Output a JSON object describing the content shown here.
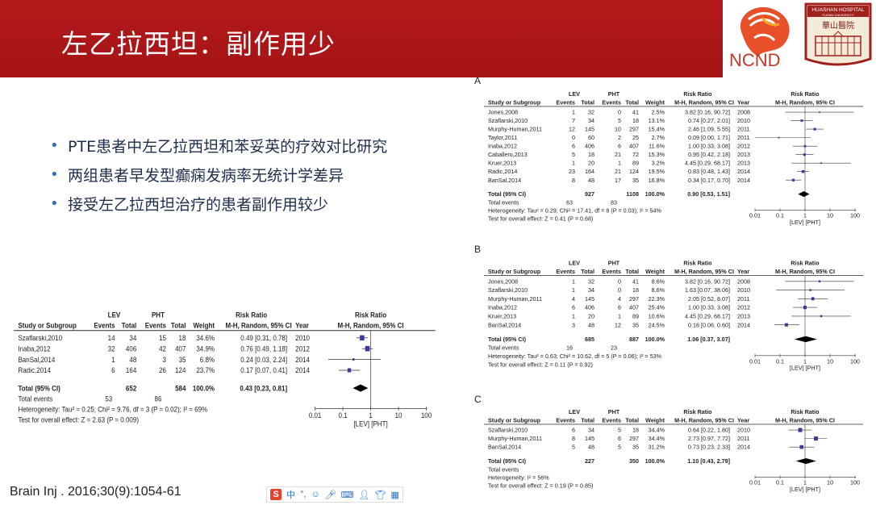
{
  "slide": {
    "title": "左乙拉西坦：副作用少",
    "bullets": [
      "PTE患者中左乙拉西坦和苯妥英的疗效对比研究",
      "两组患者早发型癫痫发病率无统计学差异",
      "接受左乙拉西坦治疗的患者副作用较少"
    ],
    "citation": "Brain Inj . 2016;30(9):1054-61",
    "logos": {
      "ncnd": "NCND",
      "huashan_en": "HUASHAN HOSPITAL",
      "huashan_sub": "FUDAN UNIVERSITY",
      "huashan_cn": "華山醫院"
    },
    "colors": {
      "header_band": "#b3191b",
      "bullet": "#2a6fb8",
      "study_marker": "#3a3a9a"
    }
  },
  "headers": {
    "group1": "LEV",
    "group2": "PHT",
    "risk_ratio": "Risk Ratio",
    "study": "Study or Subgroup",
    "events": "Events",
    "total": "Total",
    "weight": "Weight",
    "method": "M-H, Random, 95% CI",
    "year": "Year",
    "total_row": "Total (95% CI)",
    "total_events": "Total events",
    "axis_ticks": [
      "0.01",
      "0.1",
      "1",
      "10",
      "100"
    ],
    "favours": "[LEV]  [PHT]"
  },
  "ime_toolbar": {
    "logo": "S",
    "mode": "中",
    "punct": "°,",
    "icons": [
      "emoji-icon",
      "mic-icon",
      "keyboard-icon",
      "user-icon",
      "skin-icon",
      "grid-icon"
    ]
  },
  "forest_plots": [
    {
      "id": "main",
      "label": "",
      "rows": [
        {
          "study": "Szaflarski,2010",
          "e1": "14",
          "n1": "34",
          "e2": "15",
          "n2": "18",
          "weight": "34.6%",
          "rr": "0.49 [0.31, 0.78]",
          "year": "2010"
        },
        {
          "study": "Inaba,2012",
          "e1": "32",
          "n1": "406",
          "e2": "42",
          "n2": "407",
          "weight": "34.9%",
          "rr": "0.76 [0.49, 1.18]",
          "year": "2012"
        },
        {
          "study": "BanSal,2014",
          "e1": "1",
          "n1": "48",
          "e2": "3",
          "n2": "35",
          "weight": "6.8%",
          "rr": "0.24 [0.03, 2.24]",
          "year": "2014"
        },
        {
          "study": "Radic,2014",
          "e1": "6",
          "n1": "164",
          "e2": "26",
          "n2": "124",
          "weight": "23.7%",
          "rr": "0.17 [0.07, 0.41]",
          "year": "2014"
        }
      ],
      "total": {
        "n1": "652",
        "n2": "584",
        "weight": "100.0%",
        "rr": "0.43 [0.23, 0.81]",
        "e1": "53",
        "e2": "86"
      },
      "heterogeneity": "Heterogeneity: Tau² = 0.25; Chi² = 9.76, df = 3 (P = 0.02); I² = 69%",
      "overall": "Test for overall effect: Z = 2.63 (P = 0.009)"
    },
    {
      "id": "A",
      "label": "A",
      "rows": [
        {
          "study": "Jones,2008",
          "e1": "1",
          "n1": "32",
          "e2": "0",
          "n2": "41",
          "weight": "2.5%",
          "rr": "3.82 [0.16, 90.72]",
          "year": "2008"
        },
        {
          "study": "Szaflarski,2010",
          "e1": "7",
          "n1": "34",
          "e2": "5",
          "n2": "18",
          "weight": "13.1%",
          "rr": "0.74 [0.27, 2.01]",
          "year": "2010"
        },
        {
          "study": "Murphy-Human,2011",
          "e1": "12",
          "n1": "145",
          "e2": "10",
          "n2": "297",
          "weight": "15.4%",
          "rr": "2.46 [1.09, 5.55]",
          "year": "2011"
        },
        {
          "study": "Taylor,2011",
          "e1": "0",
          "n1": "60",
          "e2": "2",
          "n2": "25",
          "weight": "2.7%",
          "rr": "0.09 [0.00, 1.71]",
          "year": "2011"
        },
        {
          "study": "Inaba,2012",
          "e1": "6",
          "n1": "406",
          "e2": "6",
          "n2": "407",
          "weight": "11.6%",
          "rr": "1.00 [0.33, 3.08]",
          "year": "2012"
        },
        {
          "study": "Caballero,2013",
          "e1": "5",
          "n1": "18",
          "e2": "21",
          "n2": "72",
          "weight": "15.3%",
          "rr": "0.95 [0.42, 2.18]",
          "year": "2013"
        },
        {
          "study": "Kruer,2013",
          "e1": "1",
          "n1": "20",
          "e2": "1",
          "n2": "89",
          "weight": "3.2%",
          "rr": "4.45 [0.29, 68.17]",
          "year": "2013"
        },
        {
          "study": "Radic,2014",
          "e1": "23",
          "n1": "164",
          "e2": "21",
          "n2": "124",
          "weight": "19.5%",
          "rr": "0.83 [0.48, 1.43]",
          "year": "2014"
        },
        {
          "study": "BanSal,2014",
          "e1": "8",
          "n1": "48",
          "e2": "17",
          "n2": "35",
          "weight": "16.8%",
          "rr": "0.34 [0.17, 0.70]",
          "year": "2014"
        }
      ],
      "total": {
        "n1": "927",
        "n2": "1108",
        "weight": "100.0%",
        "rr": "0.90 [0.53, 1.51]",
        "e1": "63",
        "e2": "83"
      },
      "heterogeneity": "Heterogeneity: Tau² = 0.29; Chi² = 17.41, df = 8 (P = 0.03); I² = 54%",
      "overall": "Test for overall effect: Z = 0.41 (P = 0.68)"
    },
    {
      "id": "B",
      "label": "B",
      "rows": [
        {
          "study": "Jones,2008",
          "e1": "1",
          "n1": "32",
          "e2": "0",
          "n2": "41",
          "weight": "8.6%",
          "rr": "3.82 [0.16, 90.72]",
          "year": "2008"
        },
        {
          "study": "Szaflarski,2010",
          "e1": "1",
          "n1": "34",
          "e2": "0",
          "n2": "18",
          "weight": "8.6%",
          "rr": "1.63 [0.07, 38.06]",
          "year": "2010"
        },
        {
          "study": "Murphy-Human,2011",
          "e1": "4",
          "n1": "145",
          "e2": "4",
          "n2": "297",
          "weight": "22.3%",
          "rr": "2.05 [0.52, 8.07]",
          "year": "2011"
        },
        {
          "study": "Inaba,2012",
          "e1": "6",
          "n1": "406",
          "e2": "6",
          "n2": "407",
          "weight": "25.4%",
          "rr": "1.00 [0.33, 3.08]",
          "year": "2012"
        },
        {
          "study": "Kruer,2013",
          "e1": "1",
          "n1": "20",
          "e2": "1",
          "n2": "89",
          "weight": "10.6%",
          "rr": "4.45 [0.29, 68.17]",
          "year": "2013"
        },
        {
          "study": "BanSal,2014",
          "e1": "3",
          "n1": "48",
          "e2": "12",
          "n2": "35",
          "weight": "24.5%",
          "rr": "0.18 [0.06, 0.60]",
          "year": "2014"
        }
      ],
      "total": {
        "n1": "685",
        "n2": "887",
        "weight": "100.0%",
        "rr": "1.06 [0.37, 3.07]",
        "e1": "16",
        "e2": "23"
      },
      "heterogeneity": "Heterogeneity: Tau² = 0.63; Chi² = 10.62, df = 5 (P = 0.06); I² = 53%",
      "overall": "Test for overall effect: Z = 0.11 (P = 0.92)"
    },
    {
      "id": "C",
      "label": "C",
      "rows": [
        {
          "study": "Szaflarski,2010",
          "e1": "6",
          "n1": "34",
          "e2": "5",
          "n2": "18",
          "weight": "34.4%",
          "rr": "0.64 [0.22, 1.80]",
          "year": "2010"
        },
        {
          "study": "Murphy-Human,2011",
          "e1": "8",
          "n1": "145",
          "e2": "6",
          "n2": "297",
          "weight": "34.4%",
          "rr": "2.73 [0.97, 7.72]",
          "year": "2011"
        },
        {
          "study": "BanSal,2014",
          "e1": "5",
          "n1": "48",
          "e2": "5",
          "n2": "35",
          "weight": "31.2%",
          "rr": "0.73 [0.23, 2.33]",
          "year": "2014"
        }
      ],
      "total": {
        "n1": "227",
        "n2": "350",
        "weight": "100.0%",
        "rr": "1.10 [0.43, 2.79]"
      },
      "heterogeneity": "Heterogeneity:                                        I² = 56%",
      "overall": "Test for overall effect: Z = 0.19 (P = 0.85)"
    }
  ]
}
